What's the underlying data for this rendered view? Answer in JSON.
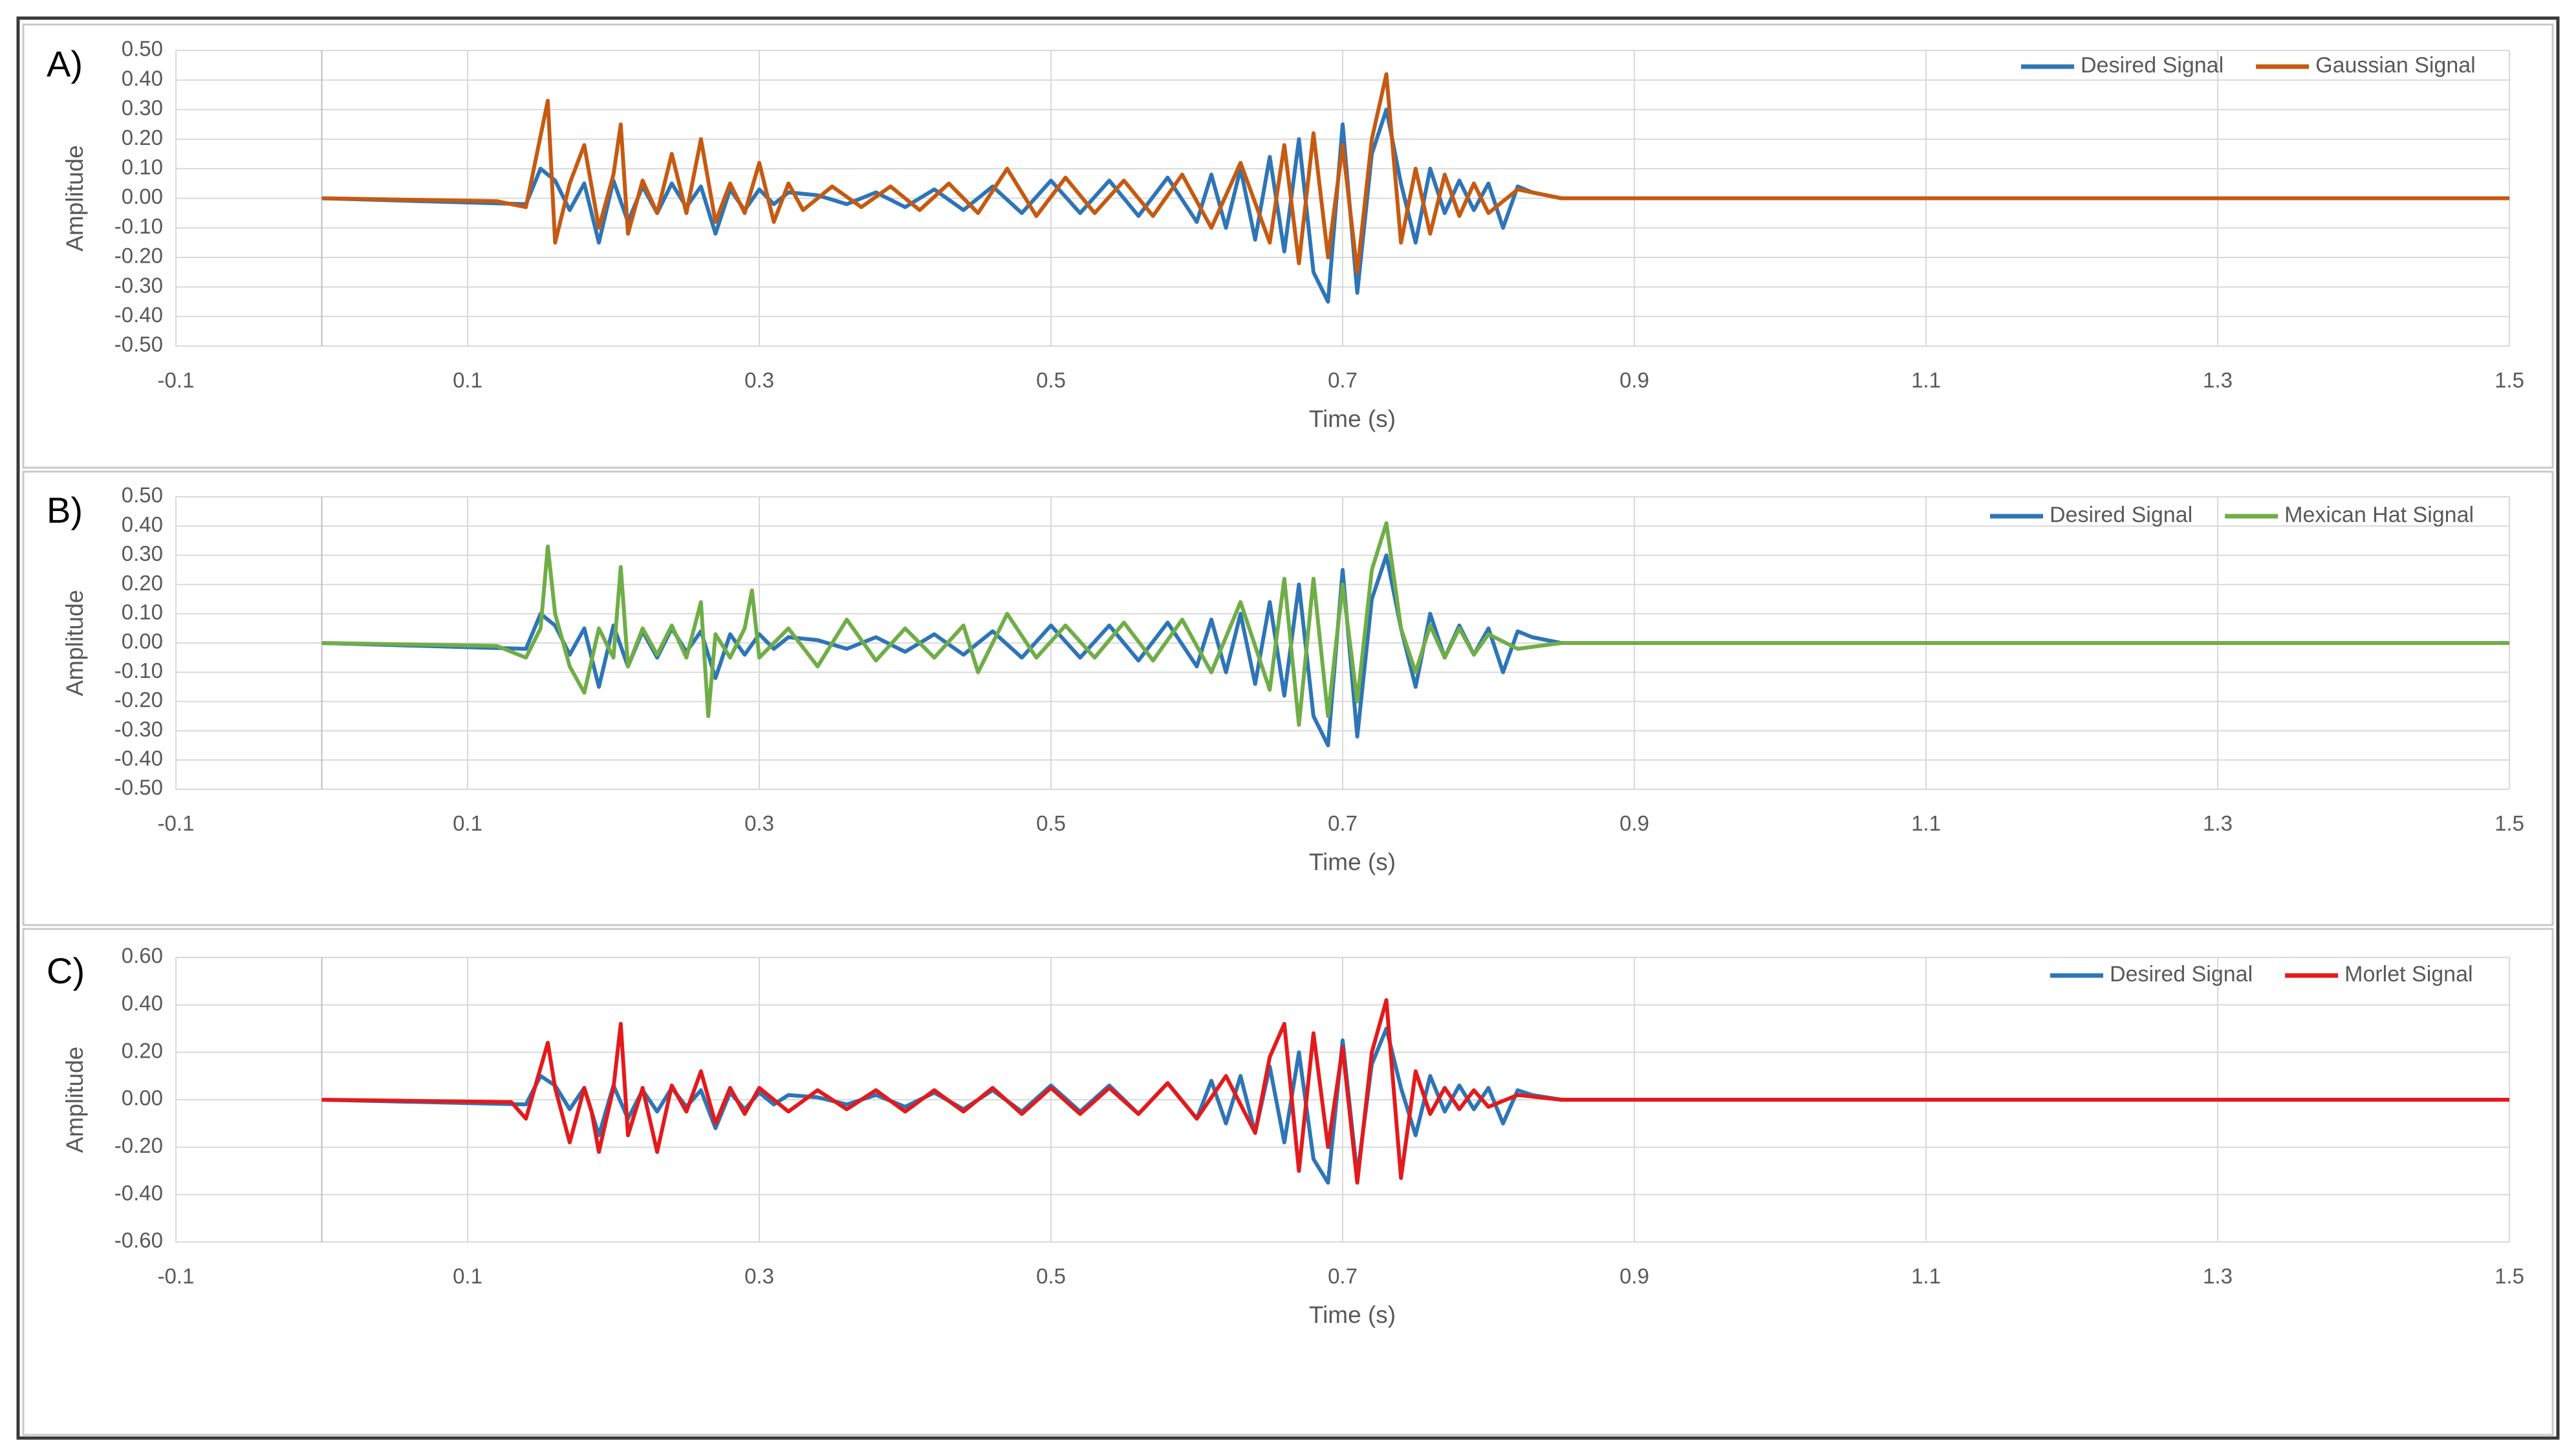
{
  "chart_data": [
    {
      "type": "line",
      "panel_label": "A)",
      "xlabel": "Time (s)",
      "ylabel": "Amplitude",
      "xlim": [
        -0.1,
        1.5
      ],
      "ylim": [
        -0.5,
        0.5
      ],
      "x_ticks": [
        "-0.1",
        "0.1",
        "0.3",
        "0.5",
        "0.7",
        "0.9",
        "1.1",
        "1.3",
        "1.5"
      ],
      "y_ticks": [
        "0.50",
        "0.40",
        "0.30",
        "0.20",
        "0.10",
        "0.00",
        "-0.10",
        "-0.20",
        "-0.30",
        "-0.40",
        "-0.50"
      ],
      "legend_position": "top-right",
      "grid": true,
      "series": [
        {
          "name": "Desired Signal",
          "color": "#2e75b6",
          "x": [
            0,
            0.14,
            0.15,
            0.16,
            0.17,
            0.18,
            0.19,
            0.2,
            0.21,
            0.22,
            0.23,
            0.24,
            0.25,
            0.26,
            0.27,
            0.28,
            0.29,
            0.3,
            0.31,
            0.32,
            0.34,
            0.36,
            0.38,
            0.4,
            0.42,
            0.44,
            0.46,
            0.48,
            0.5,
            0.52,
            0.54,
            0.56,
            0.58,
            0.6,
            0.61,
            0.62,
            0.63,
            0.64,
            0.65,
            0.66,
            0.67,
            0.68,
            0.69,
            0.7,
            0.71,
            0.72,
            0.73,
            0.74,
            0.75,
            0.76,
            0.77,
            0.78,
            0.79,
            0.8,
            0.81,
            0.82,
            0.83,
            0.85,
            1.5
          ],
          "y": [
            0,
            -0.02,
            0.1,
            0.06,
            -0.04,
            0.05,
            -0.15,
            0.06,
            -0.08,
            0.04,
            -0.05,
            0.05,
            -0.03,
            0.04,
            -0.12,
            0.03,
            -0.04,
            0.03,
            -0.02,
            0.02,
            0.01,
            -0.02,
            0.02,
            -0.03,
            0.03,
            -0.04,
            0.04,
            -0.05,
            0.06,
            -0.05,
            0.06,
            -0.06,
            0.07,
            -0.08,
            0.08,
            -0.1,
            0.1,
            -0.14,
            0.14,
            -0.18,
            0.2,
            -0.25,
            -0.35,
            0.25,
            -0.32,
            0.15,
            0.3,
            0.05,
            -0.15,
            0.1,
            -0.05,
            0.06,
            -0.04,
            0.05,
            -0.1,
            0.04,
            0.02,
            0,
            0
          ]
        },
        {
          "name": "Gaussian Signal",
          "color": "#c55a11",
          "x": [
            0,
            0.12,
            0.14,
            0.155,
            0.16,
            0.17,
            0.18,
            0.19,
            0.2,
            0.205,
            0.21,
            0.22,
            0.23,
            0.24,
            0.25,
            0.26,
            0.27,
            0.28,
            0.29,
            0.3,
            0.31,
            0.32,
            0.33,
            0.35,
            0.37,
            0.39,
            0.41,
            0.43,
            0.45,
            0.47,
            0.49,
            0.51,
            0.53,
            0.55,
            0.57,
            0.59,
            0.61,
            0.63,
            0.65,
            0.66,
            0.67,
            0.68,
            0.69,
            0.7,
            0.71,
            0.72,
            0.73,
            0.74,
            0.75,
            0.76,
            0.77,
            0.78,
            0.79,
            0.8,
            0.82,
            0.85,
            1.5
          ],
          "y": [
            0,
            -0.01,
            -0.03,
            0.33,
            -0.15,
            0.05,
            0.18,
            -0.1,
            0.08,
            0.25,
            -0.12,
            0.06,
            -0.05,
            0.15,
            -0.05,
            0.2,
            -0.08,
            0.05,
            -0.05,
            0.12,
            -0.08,
            0.05,
            -0.04,
            0.04,
            -0.03,
            0.04,
            -0.04,
            0.05,
            -0.05,
            0.1,
            -0.06,
            0.07,
            -0.05,
            0.06,
            -0.06,
            0.08,
            -0.1,
            0.12,
            -0.15,
            0.18,
            -0.22,
            0.22,
            -0.2,
            0.18,
            -0.25,
            0.2,
            0.42,
            -0.15,
            0.1,
            -0.12,
            0.08,
            -0.06,
            0.05,
            -0.05,
            0.03,
            0,
            0
          ]
        }
      ]
    },
    {
      "type": "line",
      "panel_label": "B)",
      "xlabel": "Time (s)",
      "ylabel": "Amplitude",
      "xlim": [
        -0.1,
        1.5
      ],
      "ylim": [
        -0.5,
        0.5
      ],
      "x_ticks": [
        "-0.1",
        "0.1",
        "0.3",
        "0.5",
        "0.7",
        "0.9",
        "1.1",
        "1.3",
        "1.5"
      ],
      "y_ticks": [
        "0.50",
        "0.40",
        "0.30",
        "0.20",
        "0.10",
        "0.00",
        "-0.10",
        "-0.20",
        "-0.30",
        "-0.40",
        "-0.50"
      ],
      "legend_position": "top-right",
      "grid": true,
      "series": [
        {
          "name": "Desired Signal",
          "color": "#2e75b6",
          "x": [
            0,
            0.14,
            0.15,
            0.16,
            0.17,
            0.18,
            0.19,
            0.2,
            0.21,
            0.22,
            0.23,
            0.24,
            0.25,
            0.26,
            0.27,
            0.28,
            0.29,
            0.3,
            0.31,
            0.32,
            0.34,
            0.36,
            0.38,
            0.4,
            0.42,
            0.44,
            0.46,
            0.48,
            0.5,
            0.52,
            0.54,
            0.56,
            0.58,
            0.6,
            0.61,
            0.62,
            0.63,
            0.64,
            0.65,
            0.66,
            0.67,
            0.68,
            0.69,
            0.7,
            0.71,
            0.72,
            0.73,
            0.74,
            0.75,
            0.76,
            0.77,
            0.78,
            0.79,
            0.8,
            0.81,
            0.82,
            0.83,
            0.85,
            1.5
          ],
          "y": [
            0,
            -0.02,
            0.1,
            0.06,
            -0.04,
            0.05,
            -0.15,
            0.06,
            -0.08,
            0.04,
            -0.05,
            0.05,
            -0.03,
            0.04,
            -0.12,
            0.03,
            -0.04,
            0.03,
            -0.02,
            0.02,
            0.01,
            -0.02,
            0.02,
            -0.03,
            0.03,
            -0.04,
            0.04,
            -0.05,
            0.06,
            -0.05,
            0.06,
            -0.06,
            0.07,
            -0.08,
            0.08,
            -0.1,
            0.1,
            -0.14,
            0.14,
            -0.18,
            0.2,
            -0.25,
            -0.35,
            0.25,
            -0.32,
            0.15,
            0.3,
            0.05,
            -0.15,
            0.1,
            -0.05,
            0.06,
            -0.04,
            0.05,
            -0.1,
            0.04,
            0.02,
            0,
            0
          ]
        },
        {
          "name": "Mexican Hat Signal",
          "color": "#70ad47",
          "x": [
            0,
            0.12,
            0.14,
            0.15,
            0.155,
            0.16,
            0.17,
            0.18,
            0.19,
            0.2,
            0.205,
            0.21,
            0.22,
            0.23,
            0.24,
            0.25,
            0.26,
            0.265,
            0.27,
            0.28,
            0.29,
            0.295,
            0.3,
            0.32,
            0.34,
            0.36,
            0.38,
            0.4,
            0.42,
            0.44,
            0.45,
            0.47,
            0.49,
            0.51,
            0.53,
            0.55,
            0.57,
            0.59,
            0.61,
            0.63,
            0.65,
            0.66,
            0.67,
            0.68,
            0.69,
            0.7,
            0.71,
            0.72,
            0.73,
            0.74,
            0.75,
            0.76,
            0.77,
            0.78,
            0.79,
            0.8,
            0.82,
            0.85,
            1.5
          ],
          "y": [
            0,
            -0.01,
            -0.05,
            0.05,
            0.33,
            0.1,
            -0.08,
            -0.17,
            0.05,
            -0.05,
            0.26,
            -0.08,
            0.05,
            -0.04,
            0.06,
            -0.05,
            0.14,
            -0.25,
            0.03,
            -0.05,
            0.05,
            0.18,
            -0.05,
            0.05,
            -0.08,
            0.08,
            -0.06,
            0.05,
            -0.05,
            0.06,
            -0.1,
            0.1,
            -0.05,
            0.06,
            -0.05,
            0.07,
            -0.06,
            0.08,
            -0.1,
            0.14,
            -0.16,
            0.22,
            -0.28,
            0.22,
            -0.25,
            0.2,
            -0.2,
            0.25,
            0.41,
            0.05,
            -0.1,
            0.06,
            -0.05,
            0.05,
            -0.04,
            0.03,
            -0.02,
            0,
            0
          ]
        }
      ]
    },
    {
      "type": "line",
      "panel_label": "C)",
      "xlabel": "Time (s)",
      "ylabel": "Amplitude",
      "xlim": [
        -0.1,
        1.5
      ],
      "ylim": [
        -0.6,
        0.6
      ],
      "x_ticks": [
        "-0.1",
        "0.1",
        "0.3",
        "0.5",
        "0.7",
        "0.9",
        "1.1",
        "1.3",
        "1.5"
      ],
      "y_ticks": [
        "0.60",
        "0.40",
        "0.20",
        "0.00",
        "-0.20",
        "-0.40",
        "-0.60"
      ],
      "legend_position": "top-right",
      "grid": true,
      "series": [
        {
          "name": "Desired Signal",
          "color": "#2e75b6",
          "x": [
            0,
            0.14,
            0.15,
            0.16,
            0.17,
            0.18,
            0.19,
            0.2,
            0.21,
            0.22,
            0.23,
            0.24,
            0.25,
            0.26,
            0.27,
            0.28,
            0.29,
            0.3,
            0.31,
            0.32,
            0.34,
            0.36,
            0.38,
            0.4,
            0.42,
            0.44,
            0.46,
            0.48,
            0.5,
            0.52,
            0.54,
            0.56,
            0.58,
            0.6,
            0.61,
            0.62,
            0.63,
            0.64,
            0.65,
            0.66,
            0.67,
            0.68,
            0.69,
            0.7,
            0.71,
            0.72,
            0.73,
            0.74,
            0.75,
            0.76,
            0.77,
            0.78,
            0.79,
            0.8,
            0.81,
            0.82,
            0.83,
            0.85,
            1.5
          ],
          "y": [
            0,
            -0.02,
            0.1,
            0.06,
            -0.04,
            0.05,
            -0.15,
            0.06,
            -0.08,
            0.04,
            -0.05,
            0.05,
            -0.03,
            0.04,
            -0.12,
            0.03,
            -0.04,
            0.03,
            -0.02,
            0.02,
            0.01,
            -0.02,
            0.02,
            -0.03,
            0.03,
            -0.04,
            0.04,
            -0.05,
            0.06,
            -0.05,
            0.06,
            -0.06,
            0.07,
            -0.08,
            0.08,
            -0.1,
            0.1,
            -0.14,
            0.14,
            -0.18,
            0.2,
            -0.25,
            -0.35,
            0.25,
            -0.32,
            0.15,
            0.3,
            0.05,
            -0.15,
            0.1,
            -0.05,
            0.06,
            -0.04,
            0.05,
            -0.1,
            0.04,
            0.02,
            0,
            0
          ]
        },
        {
          "name": "Morlet Signal",
          "color": "#e31a1c",
          "x": [
            0,
            0.13,
            0.14,
            0.155,
            0.16,
            0.17,
            0.18,
            0.185,
            0.19,
            0.2,
            0.205,
            0.21,
            0.22,
            0.23,
            0.24,
            0.25,
            0.26,
            0.27,
            0.28,
            0.29,
            0.3,
            0.32,
            0.34,
            0.36,
            0.38,
            0.4,
            0.42,
            0.44,
            0.46,
            0.48,
            0.5,
            0.52,
            0.54,
            0.56,
            0.58,
            0.6,
            0.62,
            0.64,
            0.65,
            0.66,
            0.67,
            0.68,
            0.69,
            0.7,
            0.71,
            0.72,
            0.73,
            0.74,
            0.75,
            0.76,
            0.77,
            0.78,
            0.79,
            0.8,
            0.82,
            0.85,
            1.5
          ],
          "y": [
            0,
            -0.01,
            -0.08,
            0.24,
            0.05,
            -0.18,
            0.05,
            -0.05,
            -0.22,
            0.05,
            0.32,
            -0.15,
            0.05,
            -0.22,
            0.06,
            -0.05,
            0.12,
            -0.1,
            0.05,
            -0.06,
            0.05,
            -0.05,
            0.04,
            -0.04,
            0.04,
            -0.05,
            0.04,
            -0.05,
            0.05,
            -0.06,
            0.05,
            -0.06,
            0.05,
            -0.06,
            0.07,
            -0.08,
            0.1,
            -0.14,
            0.18,
            0.32,
            -0.3,
            0.28,
            -0.2,
            0.22,
            -0.35,
            0.2,
            0.42,
            -0.33,
            0.12,
            -0.06,
            0.05,
            -0.04,
            0.04,
            -0.03,
            0.02,
            0,
            0
          ]
        }
      ]
    }
  ]
}
